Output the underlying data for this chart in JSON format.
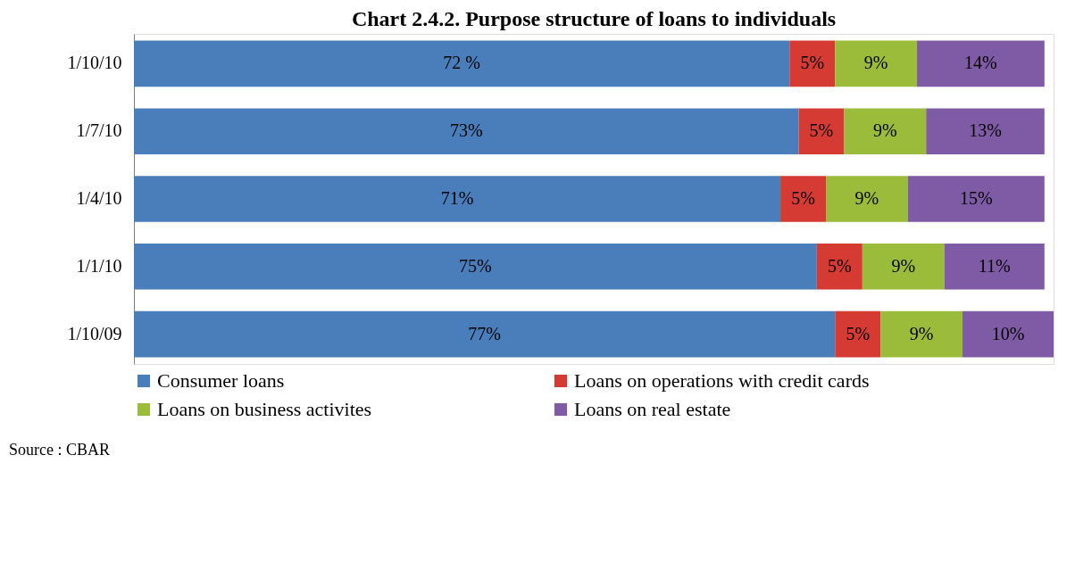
{
  "chart_data": {
    "type": "bar",
    "orientation": "horizontal",
    "stacked": true,
    "title": "Chart  2.4.2. Purpose structure of loans to individuals",
    "categories": [
      "1/10/10",
      "1/7/10",
      "1/4/10",
      "1/1/10",
      "1/10/09"
    ],
    "series": [
      {
        "name": "Consumer loans",
        "color": "#4a7ebb",
        "values": [
          72,
          73,
          71,
          75,
          77
        ],
        "value_labels": [
          "72 %",
          "73%",
          "71%",
          "75%",
          "77%"
        ]
      },
      {
        "name": "Loans on operations with credit cards",
        "color": "#d63b33",
        "values": [
          5,
          5,
          5,
          5,
          5
        ],
        "value_labels": [
          "5%",
          "5%",
          "5%",
          "5%",
          "5%"
        ]
      },
      {
        "name": "Loans on business activites",
        "color": "#9bbb3b",
        "values": [
          9,
          9,
          9,
          9,
          9
        ],
        "value_labels": [
          "9%",
          "9%",
          "9%",
          "9%",
          "9%"
        ]
      },
      {
        "name": "Loans on real estate",
        "color": "#7f5ba6",
        "values": [
          14,
          13,
          15,
          11,
          10
        ],
        "value_labels": [
          "14%",
          "13%",
          "15%",
          "11%",
          "10%"
        ]
      }
    ],
    "legend": "bottom",
    "grid": false,
    "annotations": [
      "Source : CBAR"
    ]
  }
}
